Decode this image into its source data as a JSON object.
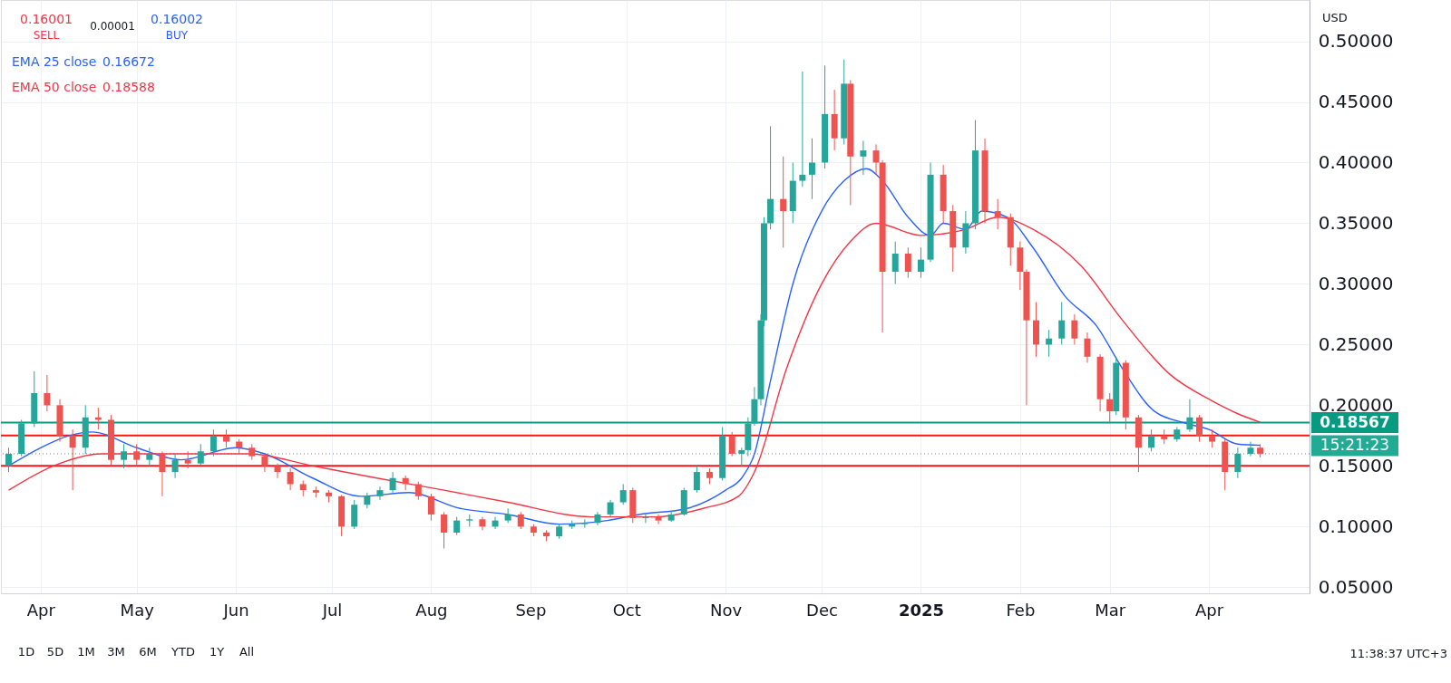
{
  "chart_data": {
    "type": "candlestick",
    "x": [
      "2024-03-22",
      "2024-03-26",
      "2024-03-30",
      "2024-04-03",
      "2024-04-07",
      "2024-04-11",
      "2024-04-15",
      "2024-04-19",
      "2024-04-23",
      "2024-04-27",
      "2024-05-01",
      "2024-05-05",
      "2024-05-09",
      "2024-05-13",
      "2024-05-17",
      "2024-05-21",
      "2024-05-25",
      "2024-05-29",
      "2024-06-02",
      "2024-06-06",
      "2024-06-10",
      "2024-06-14",
      "2024-06-18",
      "2024-06-22",
      "2024-06-26",
      "2024-06-30",
      "2024-07-04",
      "2024-07-08",
      "2024-07-12",
      "2024-07-16",
      "2024-07-20",
      "2024-07-24",
      "2024-07-28",
      "2024-08-01",
      "2024-08-05",
      "2024-08-09",
      "2024-08-13",
      "2024-08-17",
      "2024-08-21",
      "2024-08-25",
      "2024-08-29",
      "2024-09-02",
      "2024-09-06",
      "2024-09-10",
      "2024-09-14",
      "2024-09-18",
      "2024-09-22",
      "2024-09-26",
      "2024-09-30",
      "2024-10-03",
      "2024-10-07",
      "2024-10-11",
      "2024-10-15",
      "2024-10-19",
      "2024-10-23",
      "2024-10-27",
      "2024-10-31",
      "2024-11-03",
      "2024-11-06",
      "2024-11-08",
      "2024-11-10",
      "2024-11-12",
      "2024-11-13",
      "2024-11-15",
      "2024-11-19",
      "2024-11-22",
      "2024-11-25",
      "2024-11-28",
      "2024-12-02",
      "2024-12-05",
      "2024-12-08",
      "2024-12-10",
      "2024-12-14",
      "2024-12-18",
      "2024-12-20",
      "2024-12-24",
      "2024-12-28",
      "2025-01-01",
      "2025-01-04",
      "2025-01-08",
      "2025-01-11",
      "2025-01-15",
      "2025-01-18",
      "2025-01-21",
      "2025-01-25",
      "2025-01-29",
      "2025-02-01",
      "2025-02-03",
      "2025-02-06",
      "2025-02-10",
      "2025-02-14",
      "2025-02-18",
      "2025-02-22",
      "2025-02-26",
      "2025-03-01",
      "2025-03-03",
      "2025-03-06",
      "2025-03-10",
      "2025-03-14",
      "2025-03-18",
      "2025-03-22",
      "2025-03-26",
      "2025-03-29",
      "2025-04-02",
      "2025-04-06",
      "2025-04-10",
      "2025-04-14",
      "2025-04-17"
    ],
    "ohlc": [
      [
        0.15,
        0.165,
        0.145,
        0.16
      ],
      [
        0.16,
        0.188,
        0.158,
        0.185
      ],
      [
        0.185,
        0.228,
        0.182,
        0.21
      ],
      [
        0.21,
        0.225,
        0.195,
        0.2
      ],
      [
        0.2,
        0.205,
        0.17,
        0.175
      ],
      [
        0.175,
        0.18,
        0.13,
        0.165
      ],
      [
        0.165,
        0.2,
        0.16,
        0.19
      ],
      [
        0.19,
        0.198,
        0.18,
        0.188
      ],
      [
        0.188,
        0.192,
        0.15,
        0.155
      ],
      [
        0.155,
        0.168,
        0.148,
        0.162
      ],
      [
        0.162,
        0.168,
        0.15,
        0.155
      ],
      [
        0.155,
        0.165,
        0.15,
        0.16
      ],
      [
        0.16,
        0.162,
        0.125,
        0.145
      ],
      [
        0.145,
        0.16,
        0.14,
        0.155
      ],
      [
        0.155,
        0.162,
        0.148,
        0.152
      ],
      [
        0.152,
        0.168,
        0.15,
        0.162
      ],
      [
        0.162,
        0.18,
        0.158,
        0.175
      ],
      [
        0.175,
        0.18,
        0.165,
        0.17
      ],
      [
        0.17,
        0.172,
        0.16,
        0.165
      ],
      [
        0.165,
        0.168,
        0.155,
        0.158
      ],
      [
        0.158,
        0.16,
        0.145,
        0.15
      ],
      [
        0.15,
        0.152,
        0.14,
        0.145
      ],
      [
        0.145,
        0.148,
        0.13,
        0.135
      ],
      [
        0.135,
        0.138,
        0.125,
        0.13
      ],
      [
        0.13,
        0.133,
        0.124,
        0.128
      ],
      [
        0.128,
        0.13,
        0.12,
        0.125
      ],
      [
        0.125,
        0.126,
        0.092,
        0.1
      ],
      [
        0.1,
        0.122,
        0.098,
        0.118
      ],
      [
        0.118,
        0.128,
        0.115,
        0.125
      ],
      [
        0.125,
        0.133,
        0.122,
        0.13
      ],
      [
        0.13,
        0.145,
        0.128,
        0.14
      ],
      [
        0.14,
        0.142,
        0.13,
        0.135
      ],
      [
        0.135,
        0.137,
        0.122,
        0.125
      ],
      [
        0.125,
        0.127,
        0.105,
        0.11
      ],
      [
        0.11,
        0.112,
        0.082,
        0.095
      ],
      [
        0.095,
        0.108,
        0.093,
        0.105
      ],
      [
        0.105,
        0.11,
        0.1,
        0.106
      ],
      [
        0.106,
        0.108,
        0.097,
        0.1
      ],
      [
        0.1,
        0.108,
        0.098,
        0.105
      ],
      [
        0.105,
        0.115,
        0.103,
        0.11
      ],
      [
        0.11,
        0.112,
        0.098,
        0.1
      ],
      [
        0.1,
        0.102,
        0.092,
        0.095
      ],
      [
        0.095,
        0.097,
        0.088,
        0.092
      ],
      [
        0.092,
        0.102,
        0.09,
        0.1
      ],
      [
        0.1,
        0.105,
        0.098,
        0.102
      ],
      [
        0.102,
        0.106,
        0.099,
        0.103
      ],
      [
        0.103,
        0.112,
        0.101,
        0.11
      ],
      [
        0.11,
        0.122,
        0.108,
        0.12
      ],
      [
        0.12,
        0.135,
        0.118,
        0.13
      ],
      [
        0.13,
        0.132,
        0.103,
        0.107
      ],
      [
        0.107,
        0.111,
        0.103,
        0.108
      ],
      [
        0.108,
        0.11,
        0.102,
        0.105
      ],
      [
        0.105,
        0.113,
        0.104,
        0.11
      ],
      [
        0.11,
        0.132,
        0.109,
        0.13
      ],
      [
        0.13,
        0.15,
        0.128,
        0.145
      ],
      [
        0.145,
        0.148,
        0.135,
        0.14
      ],
      [
        0.14,
        0.182,
        0.138,
        0.175
      ],
      [
        0.175,
        0.178,
        0.158,
        0.16
      ],
      [
        0.16,
        0.165,
        0.15,
        0.163
      ],
      [
        0.163,
        0.19,
        0.158,
        0.185
      ],
      [
        0.185,
        0.215,
        0.183,
        0.205
      ],
      [
        0.205,
        0.275,
        0.2,
        0.27
      ],
      [
        0.27,
        0.355,
        0.265,
        0.35
      ],
      [
        0.35,
        0.43,
        0.345,
        0.37
      ],
      [
        0.37,
        0.405,
        0.33,
        0.36
      ],
      [
        0.36,
        0.4,
        0.35,
        0.385
      ],
      [
        0.385,
        0.475,
        0.38,
        0.39
      ],
      [
        0.39,
        0.42,
        0.37,
        0.4
      ],
      [
        0.4,
        0.48,
        0.395,
        0.44
      ],
      [
        0.44,
        0.46,
        0.41,
        0.42
      ],
      [
        0.42,
        0.485,
        0.415,
        0.465
      ],
      [
        0.465,
        0.468,
        0.365,
        0.405
      ],
      [
        0.405,
        0.418,
        0.39,
        0.41
      ],
      [
        0.41,
        0.415,
        0.39,
        0.4
      ],
      [
        0.4,
        0.402,
        0.26,
        0.31
      ],
      [
        0.31,
        0.335,
        0.3,
        0.325
      ],
      [
        0.325,
        0.33,
        0.305,
        0.31
      ],
      [
        0.31,
        0.33,
        0.305,
        0.32
      ],
      [
        0.32,
        0.4,
        0.318,
        0.39
      ],
      [
        0.39,
        0.398,
        0.35,
        0.36
      ],
      [
        0.36,
        0.365,
        0.31,
        0.33
      ],
      [
        0.33,
        0.36,
        0.325,
        0.35
      ],
      [
        0.35,
        0.435,
        0.345,
        0.41
      ],
      [
        0.41,
        0.42,
        0.35,
        0.36
      ],
      [
        0.36,
        0.37,
        0.345,
        0.355
      ],
      [
        0.355,
        0.358,
        0.315,
        0.33
      ],
      [
        0.33,
        0.335,
        0.295,
        0.31
      ],
      [
        0.31,
        0.312,
        0.2,
        0.27
      ],
      [
        0.27,
        0.285,
        0.24,
        0.25
      ],
      [
        0.25,
        0.262,
        0.24,
        0.255
      ],
      [
        0.255,
        0.285,
        0.25,
        0.27
      ],
      [
        0.27,
        0.275,
        0.25,
        0.255
      ],
      [
        0.255,
        0.26,
        0.235,
        0.24
      ],
      [
        0.24,
        0.242,
        0.195,
        0.205
      ],
      [
        0.205,
        0.21,
        0.185,
        0.195
      ],
      [
        0.195,
        0.24,
        0.192,
        0.235
      ],
      [
        0.235,
        0.237,
        0.18,
        0.19
      ],
      [
        0.19,
        0.192,
        0.145,
        0.165
      ],
      [
        0.165,
        0.18,
        0.162,
        0.175
      ],
      [
        0.175,
        0.18,
        0.168,
        0.172
      ],
      [
        0.172,
        0.182,
        0.17,
        0.18
      ],
      [
        0.18,
        0.205,
        0.178,
        0.19
      ],
      [
        0.19,
        0.192,
        0.17,
        0.175
      ],
      [
        0.175,
        0.18,
        0.165,
        0.17
      ],
      [
        0.17,
        0.172,
        0.13,
        0.145
      ],
      [
        0.145,
        0.165,
        0.14,
        0.16
      ],
      [
        0.16,
        0.17,
        0.158,
        0.165
      ],
      [
        0.165,
        0.168,
        0.157,
        0.16
      ]
    ],
    "series": [
      {
        "type": "line",
        "name": "EMA 25 close",
        "color": "#2962ff",
        "x": [
          "2024-03-22",
          "2024-04-01",
          "2024-04-10",
          "2024-04-17",
          "2024-05-01",
          "2024-05-15",
          "2024-06-01",
          "2024-06-10",
          "2024-06-25",
          "2024-07-10",
          "2024-07-25",
          "2024-08-10",
          "2024-08-25",
          "2024-09-10",
          "2024-09-25",
          "2024-10-05",
          "2024-10-20",
          "2024-11-01",
          "2024-11-06",
          "2024-11-10",
          "2024-11-15",
          "2024-11-22",
          "2024-12-01",
          "2024-12-08",
          "2024-12-15",
          "2024-12-20",
          "2024-12-28",
          "2025-01-04",
          "2025-01-08",
          "2025-01-15",
          "2025-01-20",
          "2025-01-28",
          "2025-02-05",
          "2025-02-15",
          "2025-02-25",
          "2025-03-05",
          "2025-03-15",
          "2025-03-25",
          "2025-04-01",
          "2025-04-10",
          "2025-04-17"
        ],
        "values": [
          0.15,
          0.165,
          0.175,
          0.178,
          0.165,
          0.155,
          0.165,
          0.16,
          0.14,
          0.125,
          0.128,
          0.115,
          0.11,
          0.102,
          0.105,
          0.11,
          0.115,
          0.13,
          0.14,
          0.16,
          0.22,
          0.3,
          0.36,
          0.385,
          0.395,
          0.385,
          0.355,
          0.34,
          0.35,
          0.345,
          0.36,
          0.355,
          0.33,
          0.29,
          0.265,
          0.23,
          0.195,
          0.185,
          0.18,
          0.168,
          0.167
        ]
      },
      {
        "type": "line",
        "name": "EMA 50 close",
        "color": "#f23645",
        "x": [
          "2024-03-22",
          "2024-04-05",
          "2024-04-20",
          "2024-05-15",
          "2024-06-05",
          "2024-06-25",
          "2024-07-15",
          "2024-08-05",
          "2024-08-25",
          "2024-09-20",
          "2024-10-10",
          "2024-10-25",
          "2024-11-05",
          "2024-11-10",
          "2024-11-20",
          "2024-12-01",
          "2024-12-10",
          "2024-12-18",
          "2025-01-01",
          "2025-01-15",
          "2025-01-25",
          "2025-02-05",
          "2025-02-20",
          "2025-03-05",
          "2025-03-20",
          "2025-04-01",
          "2025-04-10",
          "2025-04-17"
        ],
        "values": [
          0.13,
          0.15,
          0.16,
          0.16,
          0.16,
          0.15,
          0.14,
          0.13,
          0.12,
          0.108,
          0.108,
          0.115,
          0.125,
          0.145,
          0.23,
          0.3,
          0.335,
          0.35,
          0.34,
          0.345,
          0.355,
          0.345,
          0.315,
          0.27,
          0.225,
          0.205,
          0.193,
          0.186
        ]
      }
    ],
    "xlim": [
      "2024-03-21",
      "2025-05-01"
    ],
    "xticks": [
      {
        "value": "2024-04-01",
        "label": "Apr"
      },
      {
        "value": "2024-05-01",
        "label": "May"
      },
      {
        "value": "2024-06-01",
        "label": "Jun"
      },
      {
        "value": "2024-07-01",
        "label": "Jul"
      },
      {
        "value": "2024-08-01",
        "label": "Aug"
      },
      {
        "value": "2024-09-01",
        "label": "Sep"
      },
      {
        "value": "2024-10-01",
        "label": "Oct"
      },
      {
        "value": "2024-11-01",
        "label": "Nov"
      },
      {
        "value": "2024-12-01",
        "label": "Dec"
      },
      {
        "value": "2025-01-01",
        "label": "2025"
      },
      {
        "value": "2025-02-01",
        "label": "Feb"
      },
      {
        "value": "2025-03-01",
        "label": "Mar"
      },
      {
        "value": "2025-04-01",
        "label": "Apr"
      }
    ],
    "ylim": [
      0.045,
      0.534
    ],
    "yticks": [
      {
        "value": 0.05,
        "label": "0.05000"
      },
      {
        "value": 0.1,
        "label": "0.10000"
      },
      {
        "value": 0.15,
        "label": "0.15000"
      },
      {
        "value": 0.2,
        "label": "0.20000"
      },
      {
        "value": 0.25,
        "label": "0.25000"
      },
      {
        "value": 0.3,
        "label": "0.30000"
      },
      {
        "value": 0.35,
        "label": "0.35000"
      },
      {
        "value": 0.4,
        "label": "0.40000"
      },
      {
        "value": 0.45,
        "label": "0.45000"
      },
      {
        "value": 0.5,
        "label": "0.50000"
      }
    ],
    "ref_lines": [
      {
        "axis": "y",
        "value": 0.18567,
        "label": "0.18567",
        "color": "#089981",
        "line_style": "solid"
      },
      {
        "axis": "y",
        "value": 0.175,
        "label": null,
        "color": "#f21818",
        "line_style": "solid"
      },
      {
        "axis": "y",
        "value": 0.15005,
        "label": null,
        "color": "#f21818",
        "line_style": "solid"
      },
      {
        "axis": "y",
        "value": 0.16001,
        "label": null,
        "color": "#22ab94",
        "line_style": "dotted"
      }
    ],
    "annotations": [
      "0.16001",
      "SELL",
      "0.00001",
      "0.16002",
      "BUY",
      "USD",
      "11:38:37 UTC+3",
      "1D",
      "5D",
      "1M",
      "3M",
      "6M",
      "YTD",
      "1Y",
      "All",
      "0.16672",
      "0.18588",
      "15:21:23"
    ],
    "grid": true,
    "legend": "top left"
  }
}
